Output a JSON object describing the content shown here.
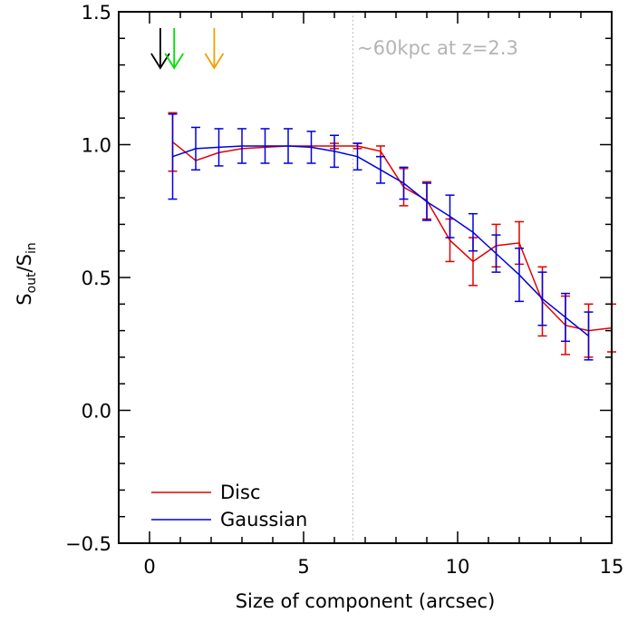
{
  "chart_data": {
    "type": "line",
    "xlabel": "Size of component (arcsec)",
    "ylabel": {
      "main": "S",
      "sub1": "out",
      "mid": "/S",
      "sub2": "in"
    },
    "xlim": [
      -1,
      15
    ],
    "ylim": [
      -0.5,
      1.5
    ],
    "x_ticks": [
      "0",
      "5",
      "10",
      "15"
    ],
    "x_tick_values": [
      0,
      5,
      10,
      15
    ],
    "y_ticks": [
      "−0.5",
      "0.0",
      "0.5",
      "1.0",
      "1.5"
    ],
    "y_tick_values": [
      -0.5,
      0.0,
      0.5,
      1.0,
      1.5
    ],
    "grid": false,
    "legend_position": "bottom-left",
    "vline": {
      "x": 6.6,
      "color": "#b4b4b4",
      "style": "dotted"
    },
    "annotation": "~60kpc at z=2.3",
    "arrows": [
      {
        "x": 0.35,
        "color": "#000000"
      },
      {
        "x": 0.8,
        "color": "#00e000"
      },
      {
        "x": 2.1,
        "color": "#f0a000"
      }
    ],
    "series": [
      {
        "name": "Disc",
        "color": "#e00000",
        "x": [
          0.75,
          1.5,
          2.25,
          3.0,
          3.75,
          4.5,
          5.25,
          6.0,
          6.75,
          7.5,
          8.25,
          9.0,
          9.75,
          10.5,
          11.25,
          12.0,
          12.75,
          13.5,
          14.25,
          15.0
        ],
        "y": [
          1.01,
          0.94,
          0.97,
          0.985,
          0.99,
          0.995,
          0.995,
          0.995,
          0.995,
          0.975,
          0.84,
          0.79,
          0.64,
          0.56,
          0.62,
          0.63,
          0.41,
          0.32,
          0.3,
          0.31
        ],
        "err": [
          0.11,
          0.0,
          0.0,
          0.0,
          0.0,
          0.0,
          0.0,
          0.01,
          0.01,
          0.02,
          0.07,
          0.07,
          0.08,
          0.09,
          0.08,
          0.08,
          0.13,
          0.11,
          0.1,
          0.09
        ]
      },
      {
        "name": "Gaussian",
        "color": "#0000e0",
        "x": [
          0.75,
          1.5,
          2.25,
          3.0,
          3.75,
          4.5,
          5.25,
          6.0,
          6.75,
          7.5,
          8.25,
          9.0,
          9.75,
          10.5,
          11.25,
          12.0,
          12.75,
          13.5,
          14.25
        ],
        "y": [
          0.955,
          0.985,
          0.99,
          0.995,
          0.995,
          0.995,
          0.99,
          0.975,
          0.955,
          0.905,
          0.855,
          0.785,
          0.73,
          0.67,
          0.59,
          0.51,
          0.42,
          0.35,
          0.28
        ],
        "err": [
          0.16,
          0.08,
          0.07,
          0.065,
          0.065,
          0.065,
          0.06,
          0.06,
          0.05,
          0.05,
          0.06,
          0.07,
          0.08,
          0.07,
          0.07,
          0.1,
          0.1,
          0.09,
          0.09
        ]
      }
    ]
  }
}
